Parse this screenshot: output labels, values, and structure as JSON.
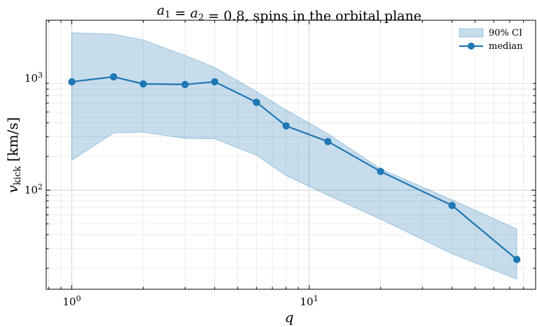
{
  "chart_data": {
    "type": "line",
    "title": "a₁ = a₂ = 0.8, spins in the orbital plane",
    "xlabel": "q",
    "ylabel": "v_kick [km/s]",
    "xscale": "log",
    "yscale": "log",
    "xlim": [
      0.78,
      90
    ],
    "ylim": [
      13,
      3300
    ],
    "grid": true,
    "legend_position": "top-right",
    "x_ticks": [
      {
        "value": 1,
        "label": "10^0"
      },
      {
        "value": 10,
        "label": "10^1"
      }
    ],
    "y_ticks": [
      {
        "value": 100,
        "label": "10^2"
      },
      {
        "value": 1000,
        "label": "10^3"
      }
    ],
    "x": [
      1,
      1.5,
      2,
      3,
      4,
      6,
      8,
      12,
      20,
      40,
      75
    ],
    "series": [
      {
        "name": "median",
        "values": [
          930,
          1030,
          890,
          880,
          930,
          610,
          375,
          272,
          147,
          73,
          24
        ],
        "color": "#1f77b4"
      }
    ],
    "band": {
      "name": "90% CI",
      "upper": [
        2550,
        2480,
        2200,
        1600,
        1250,
        760,
        520,
        320,
        155,
        82,
        45
      ],
      "lower": [
        185,
        325,
        330,
        290,
        288,
        205,
        135,
        90,
        55,
        27,
        16
      ],
      "color": "#1f77b4",
      "opacity": 0.25
    }
  }
}
